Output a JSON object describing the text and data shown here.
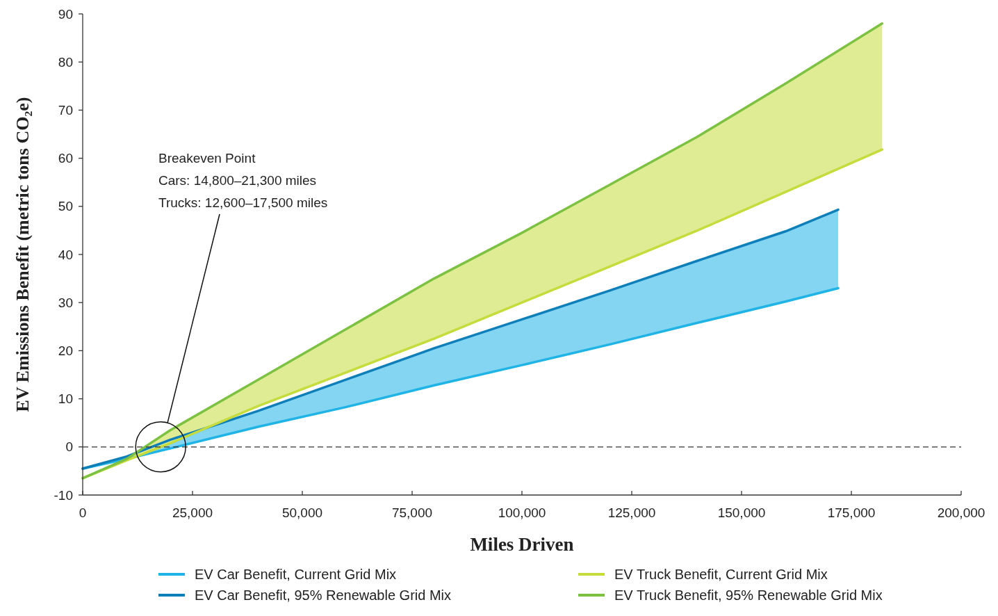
{
  "chart_data": {
    "type": "line",
    "xlabel": "Miles Driven",
    "ylabel": "EV Emissions Benefit (metric tons CO₂e)",
    "xlim": [
      0,
      200000
    ],
    "xticks": [
      {
        "value": 0,
        "label": "0"
      },
      {
        "value": 25000,
        "label": "25,000"
      },
      {
        "value": 50000,
        "label": "50,000"
      },
      {
        "value": 75000,
        "label": "75,000"
      },
      {
        "value": 100000,
        "label": "100,000"
      },
      {
        "value": 125000,
        "label": "125,000"
      },
      {
        "value": 150000,
        "label": "150,000"
      },
      {
        "value": 175000,
        "label": "175,000"
      },
      {
        "value": 200000,
        "label": "200,000"
      }
    ],
    "ylim": [
      -10,
      90
    ],
    "yticks": [
      -10,
      0,
      10,
      20,
      30,
      40,
      50,
      60,
      70,
      80,
      90
    ],
    "grid": false,
    "legend": "bottom",
    "line_style": "solid",
    "marker": "none",
    "series": [
      {
        "name": "EV Car Benefit, Current Grid Mix",
        "color": "#1fb3e6",
        "x": [
          0,
          10000,
          20000,
          40000,
          60000,
          80000,
          100000,
          120000,
          140000,
          160000,
          172000
        ],
        "values": [
          -4.5,
          -2.5,
          -0.3,
          4.2,
          8.3,
          12.8,
          17.0,
          21.3,
          25.8,
          30.2,
          33
        ]
      },
      {
        "name": "EV Car Benefit, 95% Renewable Grid Mix",
        "color": "#0f7fba",
        "x": [
          0,
          10000,
          20000,
          40000,
          60000,
          80000,
          100000,
          120000,
          140000,
          160000,
          172000
        ],
        "values": [
          -4.5,
          -2.0,
          1.5,
          7.5,
          14,
          20.5,
          26.5,
          32.5,
          38.7,
          44.8,
          49.3
        ],
        "type": "area"
      },
      {
        "name": "EV Truck Benefit, Current Grid Mix",
        "color": "#c5dc3c",
        "x": [
          0,
          10000,
          20000,
          40000,
          60000,
          80000,
          100000,
          120000,
          140000,
          160000,
          182000
        ],
        "values": [
          -6.5,
          -2.8,
          0.8,
          8.5,
          15.5,
          22.5,
          30,
          37.5,
          45,
          53,
          61.8
        ]
      },
      {
        "name": "EV Truck Benefit, 95% Renewable Grid Mix",
        "color": "#7cc142",
        "x": [
          0,
          10000,
          20000,
          40000,
          60000,
          80000,
          100000,
          120000,
          140000,
          160000,
          182000
        ],
        "values": [
          -6.5,
          -2.5,
          3.5,
          14,
          24.5,
          35,
          44.5,
          54.5,
          64.5,
          75.5,
          88
        ],
        "type": "area"
      }
    ],
    "ref_lines": [
      {
        "axis": "y",
        "value": 0,
        "color": "#333333",
        "line_style": "dashed"
      }
    ],
    "annotations": [
      "Breakeven Point\nCars: 14,800–21,300 miles\nTrucks: 12,600–17,500 miles"
    ]
  }
}
